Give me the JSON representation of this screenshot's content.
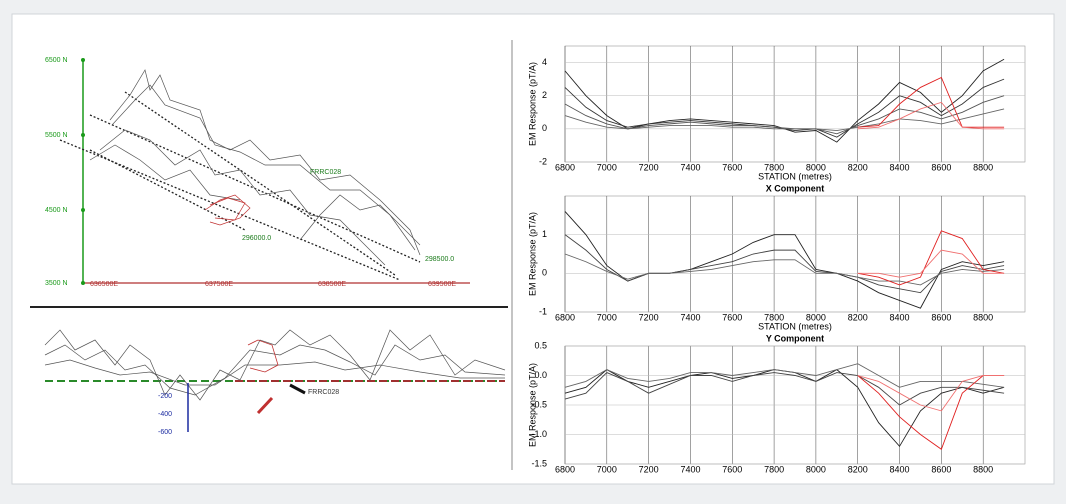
{
  "plan_view": {
    "northings": [
      "6500 N",
      "5500 N",
      "4500 N",
      "3500 N"
    ],
    "eastings": [
      "636500E",
      "637500E",
      "638500E",
      "639500E"
    ],
    "labels": [
      "FRRC028",
      "296000.0",
      "298500.0"
    ]
  },
  "section_view": {
    "depth_labels": [
      "-200",
      "-400",
      "-600"
    ],
    "labels": [
      "FRRC028"
    ]
  },
  "chart_data": [
    {
      "type": "line",
      "x_label": "STATION (metres)",
      "y_label": "EM Response (pT/A)",
      "x": [
        6800,
        6900,
        7000,
        7100,
        7200,
        7300,
        7400,
        7500,
        7600,
        7700,
        7800,
        7900,
        8000,
        8100,
        8200,
        8300,
        8400,
        8500,
        8600,
        8700,
        8800,
        8900
      ],
      "xlim": [
        6800,
        9000
      ],
      "xticks": [
        6800,
        7000,
        7200,
        7400,
        7600,
        7800,
        8000,
        8200,
        8400,
        8600,
        8800
      ],
      "ylim": [
        -2,
        5
      ],
      "yticks": [
        4,
        2,
        0,
        -2
      ],
      "grid": true,
      "series": [
        {
          "color": "#222222",
          "values": [
            3.5,
            2.0,
            0.8,
            0.0,
            0.3,
            0.5,
            0.6,
            0.5,
            0.4,
            0.3,
            0.2,
            -0.2,
            -0.1,
            -0.8,
            0.5,
            1.5,
            2.8,
            2.2,
            1.0,
            2.0,
            3.5,
            4.2
          ]
        },
        {
          "color": "#333333",
          "values": [
            2.5,
            1.3,
            0.5,
            0.1,
            0.3,
            0.4,
            0.5,
            0.4,
            0.3,
            0.2,
            0.1,
            -0.1,
            0,
            -0.5,
            0.3,
            1.0,
            2.0,
            1.6,
            0.8,
            1.5,
            2.5,
            3.0
          ]
        },
        {
          "color": "#555555",
          "values": [
            1.5,
            0.8,
            0.3,
            0.0,
            0.2,
            0.3,
            0.4,
            0.3,
            0.2,
            0.2,
            0.1,
            0,
            0,
            -0.3,
            0.2,
            0.6,
            1.2,
            1.0,
            0.6,
            1.0,
            1.6,
            2.0
          ]
        },
        {
          "color": "#666666",
          "values": [
            0.8,
            0.4,
            0.1,
            0,
            0.1,
            0.2,
            0.2,
            0.2,
            0.1,
            0.1,
            0,
            0,
            0,
            -0.1,
            0.1,
            0.3,
            0.6,
            0.5,
            0.3,
            0.6,
            0.9,
            1.2
          ]
        },
        {
          "color": "#e02020",
          "values": [
            null,
            null,
            null,
            null,
            null,
            null,
            null,
            null,
            null,
            null,
            null,
            null,
            null,
            null,
            0.1,
            0.2,
            1.5,
            2.5,
            3.1,
            0.1,
            0.1,
            0.1
          ]
        },
        {
          "color": "#f07070",
          "values": [
            null,
            null,
            null,
            null,
            null,
            null,
            null,
            null,
            null,
            null,
            null,
            null,
            null,
            null,
            0,
            0.1,
            0.6,
            1.2,
            1.6,
            0.1,
            0,
            0
          ]
        }
      ]
    },
    {
      "type": "line",
      "title": "X Component",
      "x_label": "STATION (metres)",
      "y_label": "EM Response (pT/A)",
      "x": [
        6800,
        6900,
        7000,
        7100,
        7200,
        7300,
        7400,
        7500,
        7600,
        7700,
        7800,
        7900,
        8000,
        8100,
        8200,
        8300,
        8400,
        8500,
        8600,
        8700,
        8800,
        8900
      ],
      "xlim": [
        6800,
        9000
      ],
      "xticks": [
        6800,
        7000,
        7200,
        7400,
        7600,
        7800,
        8000,
        8200,
        8400,
        8600,
        8800
      ],
      "ylim": [
        -1,
        2
      ],
      "yticks": [
        1,
        0,
        -1
      ],
      "grid": true,
      "series": [
        {
          "color": "#222222",
          "values": [
            1.6,
            1.0,
            0.2,
            -0.2,
            0,
            0,
            0.1,
            0.3,
            0.5,
            0.8,
            1.0,
            1.0,
            0.1,
            0,
            -0.2,
            -0.5,
            -0.7,
            -0.9,
            0.1,
            0.3,
            0.2,
            0.3
          ]
        },
        {
          "color": "#444444",
          "values": [
            1.0,
            0.6,
            0.1,
            -0.2,
            0,
            0,
            0.1,
            0.2,
            0.3,
            0.5,
            0.6,
            0.6,
            0.05,
            0,
            -0.1,
            -0.3,
            -0.4,
            -0.5,
            0.05,
            0.2,
            0.1,
            0.2
          ]
        },
        {
          "color": "#666666",
          "values": [
            0.5,
            0.3,
            0.05,
            -0.15,
            0,
            0,
            0.05,
            0.1,
            0.2,
            0.3,
            0.35,
            0.35,
            0,
            0,
            -0.1,
            -0.2,
            -0.2,
            -0.3,
            0,
            0.1,
            0.05,
            0.1
          ]
        },
        {
          "color": "#e02020",
          "values": [
            null,
            null,
            null,
            null,
            null,
            null,
            null,
            null,
            null,
            null,
            null,
            null,
            null,
            null,
            0,
            -0.1,
            -0.3,
            -0.1,
            1.1,
            0.9,
            0.1,
            0
          ]
        },
        {
          "color": "#f07070",
          "values": [
            null,
            null,
            null,
            null,
            null,
            null,
            null,
            null,
            null,
            null,
            null,
            null,
            null,
            null,
            0,
            0,
            -0.1,
            0,
            0.6,
            0.5,
            0,
            0
          ]
        }
      ]
    },
    {
      "type": "line",
      "title": "Y Component",
      "y_label": "EM Response (pT/A)",
      "x": [
        6800,
        6900,
        7000,
        7100,
        7200,
        7300,
        7400,
        7500,
        7600,
        7700,
        7800,
        7900,
        8000,
        8100,
        8200,
        8300,
        8400,
        8500,
        8600,
        8700,
        8800,
        8900
      ],
      "xlim": [
        6800,
        9000
      ],
      "xticks": [
        6800,
        7000,
        7200,
        7400,
        7600,
        7800,
        8000,
        8200,
        8400,
        8600,
        8800
      ],
      "ylim": [
        -1.5,
        0.5
      ],
      "yticks": [
        0.5,
        {
          "value": 0,
          "label": "0.0"
        },
        -0.5,
        {
          "value": -1,
          "label": "-1.0"
        },
        -1.5
      ],
      "grid": true,
      "series": [
        {
          "color": "#222222",
          "values": [
            -0.3,
            -0.2,
            0.1,
            -0.1,
            -0.2,
            -0.1,
            0,
            0.05,
            -0.05,
            0,
            0.1,
            0.05,
            -0.1,
            0.1,
            -0.2,
            -0.8,
            -1.2,
            -0.6,
            -0.3,
            -0.2,
            -0.3,
            -0.2
          ]
        },
        {
          "color": "#444444",
          "values": [
            -0.4,
            -0.3,
            0.05,
            -0.1,
            -0.3,
            -0.15,
            0,
            0,
            -0.1,
            0,
            0.05,
            0,
            -0.1,
            0.05,
            0,
            -0.2,
            -0.5,
            -0.3,
            -0.2,
            -0.2,
            -0.25,
            -0.3
          ]
        },
        {
          "color": "#666666",
          "values": [
            -0.2,
            -0.1,
            0.1,
            -0.05,
            -0.1,
            -0.05,
            0.05,
            0.05,
            0,
            0.05,
            0.1,
            0.05,
            0,
            0.1,
            0.2,
            0,
            -0.2,
            -0.1,
            -0.1,
            -0.1,
            -0.15,
            -0.2
          ]
        },
        {
          "color": "#e02020",
          "values": [
            null,
            null,
            null,
            null,
            null,
            null,
            null,
            null,
            null,
            null,
            null,
            null,
            null,
            null,
            0,
            -0.3,
            -0.7,
            -1.0,
            -1.25,
            -0.3,
            0,
            0
          ]
        },
        {
          "color": "#f07070",
          "values": [
            null,
            null,
            null,
            null,
            null,
            null,
            null,
            null,
            null,
            null,
            null,
            null,
            null,
            null,
            0,
            -0.1,
            -0.3,
            -0.5,
            -0.6,
            -0.1,
            0,
            0
          ]
        }
      ]
    }
  ]
}
